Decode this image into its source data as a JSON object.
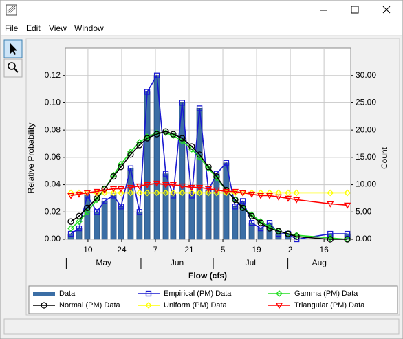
{
  "menu": [
    "File",
    "Edit",
    "View",
    "Window"
  ],
  "chart_data": {
    "type": "combo",
    "x_label": "Flow (cfs)",
    "y_label": "Relative Probability",
    "y2_label": "Count",
    "xlim": [
      0.6,
      119.1
    ],
    "xticks": [
      {
        "value": 10,
        "label": "10"
      },
      {
        "value": 24,
        "label": "24"
      },
      {
        "value": 38,
        "label": "7"
      },
      {
        "value": 52,
        "label": "21"
      },
      {
        "value": 66,
        "label": "5"
      },
      {
        "value": 80,
        "label": "19"
      },
      {
        "value": 94,
        "label": "2"
      },
      {
        "value": 108,
        "label": "16"
      }
    ],
    "month_labels": [
      "May",
      "Jun",
      "Jul",
      "Aug"
    ],
    "month_starts": [
      1,
      32,
      62,
      93
    ],
    "ylim": [
      0,
      0.14
    ],
    "yticks": [
      {
        "value": 0,
        "label": "0.00"
      },
      {
        "value": 0.02,
        "label": "0.02"
      },
      {
        "value": 0.04,
        "label": "0.04"
      },
      {
        "value": 0.06,
        "label": "0.06"
      },
      {
        "value": 0.08,
        "label": "0.08"
      },
      {
        "value": 0.1,
        "label": "0.10"
      },
      {
        "value": 0.12,
        "label": "0.12"
      }
    ],
    "y2lim": [
      0,
      35
    ],
    "y2ticks": [
      {
        "value": 0,
        "label": "0.00"
      },
      {
        "value": 5,
        "label": "5.00"
      },
      {
        "value": 10,
        "label": "10.00"
      },
      {
        "value": 15,
        "label": "15.00"
      },
      {
        "value": 20,
        "label": "20.00"
      },
      {
        "value": 25,
        "label": "25.00"
      },
      {
        "value": 30,
        "label": "30.00"
      }
    ],
    "grid": true,
    "x": [
      2.9,
      6.3,
      9.7,
      13.7,
      16.9,
      20.6,
      23.7,
      27.7,
      31.4,
      34.6,
      38.6,
      42.3,
      45.4,
      49.1,
      53.1,
      56.3,
      60,
      63.4,
      67.4,
      71.1,
      74.3,
      78,
      81.7,
      85.4,
      89.1,
      93.1,
      96.6,
      110.6,
      117.7
    ],
    "series": [
      {
        "name": "Data",
        "type": "bar",
        "axis": "y2",
        "color": "#3b6ea5",
        "values": [
          1,
          2,
          8,
          5,
          7,
          8,
          6,
          13,
          5,
          27,
          30,
          12,
          8,
          25,
          8,
          24,
          9,
          12,
          14,
          6,
          7,
          3,
          2,
          3,
          1,
          1,
          0,
          1,
          1
        ]
      },
      {
        "name": "Empirical (PM) Data",
        "type": "line",
        "marker": "square",
        "color": "#1a1ad0",
        "values": [
          0.004,
          0.008,
          0.032,
          0.02,
          0.028,
          0.032,
          0.024,
          0.052,
          0.02,
          0.108,
          0.12,
          0.048,
          0.032,
          0.1,
          0.032,
          0.096,
          0.036,
          0.048,
          0.056,
          0.024,
          0.028,
          0.012,
          0.008,
          0.012,
          0.004,
          0.004,
          0,
          0.004,
          0.004
        ]
      },
      {
        "name": "Gamma (PM) Data",
        "type": "line",
        "marker": "diamond",
        "color": "#22dd22",
        "values": [
          0.008,
          0.013,
          0.02,
          0.029,
          0.037,
          0.047,
          0.055,
          0.064,
          0.071,
          0.075,
          0.078,
          0.078,
          0.076,
          0.072,
          0.066,
          0.06,
          0.052,
          0.045,
          0.036,
          0.029,
          0.023,
          0.018,
          0.013,
          0.009,
          0.006,
          0.004,
          0.003,
          0.001,
          0
        ]
      },
      {
        "name": "Normal (PM) Data",
        "type": "line",
        "marker": "circle",
        "color": "#000000",
        "values": [
          0.013,
          0.017,
          0.023,
          0.03,
          0.037,
          0.046,
          0.053,
          0.062,
          0.069,
          0.074,
          0.077,
          0.079,
          0.077,
          0.074,
          0.068,
          0.062,
          0.053,
          0.046,
          0.036,
          0.029,
          0.023,
          0.017,
          0.012,
          0.008,
          0.006,
          0.004,
          0.002,
          0,
          0
        ]
      },
      {
        "name": "Uniform (PM) Data",
        "type": "line",
        "marker": "diamond",
        "color": "#ffff00",
        "values": [
          0.034,
          0.034,
          0.034,
          0.034,
          0.034,
          0.034,
          0.034,
          0.034,
          0.034,
          0.034,
          0.034,
          0.034,
          0.034,
          0.034,
          0.034,
          0.034,
          0.034,
          0.034,
          0.034,
          0.034,
          0.034,
          0.034,
          0.034,
          0.034,
          0.034,
          0.034,
          0.034,
          0.034,
          0.034
        ]
      },
      {
        "name": "Triangular (PM) Data",
        "type": "line",
        "marker": "triangle-down",
        "color": "#ff0000",
        "values": [
          0.032,
          0.033,
          0.034,
          0.035,
          0.036,
          0.037,
          0.037,
          0.038,
          0.039,
          0.04,
          0.041,
          0.04,
          0.04,
          0.039,
          0.038,
          0.038,
          0.037,
          0.036,
          0.035,
          0.035,
          0.034,
          0.033,
          0.032,
          0.032,
          0.031,
          0.03,
          0.029,
          0.026,
          0.025
        ]
      }
    ]
  }
}
